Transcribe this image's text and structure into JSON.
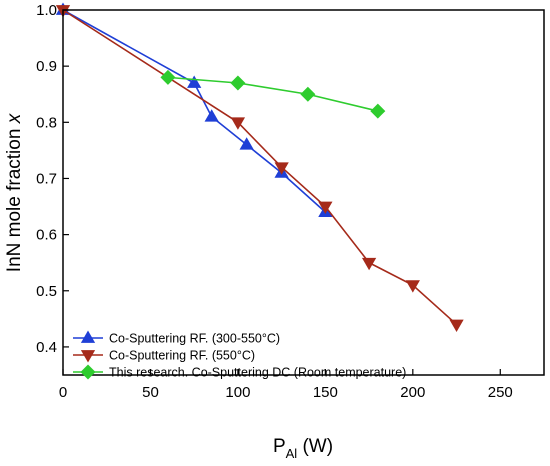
{
  "chart_data": {
    "type": "line",
    "xlabel": {
      "main": "P",
      "sub": "Al",
      "unit": " (W)"
    },
    "ylabel": {
      "main": "InN mole fraction ",
      "var": "x"
    },
    "xlim": [
      0,
      275
    ],
    "ylim": [
      0.35,
      1.0
    ],
    "xticks": [
      0,
      50,
      100,
      150,
      200,
      250
    ],
    "yticks": [
      0.4,
      0.5,
      0.6,
      0.7,
      0.8,
      0.9,
      1.0
    ],
    "xtick_labels": [
      "0",
      "50",
      "100",
      "150",
      "200",
      "250"
    ],
    "ytick_labels": [
      "0.4",
      "0.5",
      "0.6",
      "0.7",
      "0.8",
      "0.9",
      "1.0"
    ],
    "grid": false,
    "legend_position": "bottom-left",
    "series": [
      {
        "name": "Co-Sputtering RF. (300-550°C)",
        "color": "#1f3fd6",
        "marker": "triangle-up",
        "x": [
          0,
          75,
          85,
          105,
          125,
          150
        ],
        "y": [
          1.0,
          0.87,
          0.81,
          0.76,
          0.71,
          0.64
        ]
      },
      {
        "name": "Co-Sputtering RF. (550°C)",
        "color": "#a52a1a",
        "marker": "triangle-down",
        "x": [
          0,
          100,
          125,
          150,
          175,
          200,
          225
        ],
        "y": [
          1.0,
          0.8,
          0.72,
          0.65,
          0.55,
          0.51,
          0.44
        ]
      },
      {
        "name": "This research. Co-Sputtering DC (Room temperature)",
        "color": "#2ecc2e",
        "marker": "diamond",
        "x": [
          60,
          100,
          140,
          180
        ],
        "y": [
          0.88,
          0.87,
          0.85,
          0.82
        ]
      }
    ]
  }
}
